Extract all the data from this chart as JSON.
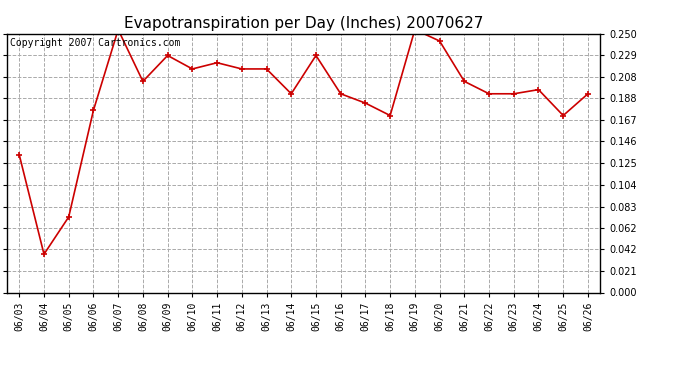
{
  "title": "Evapotranspiration per Day (Inches) 20070627",
  "copyright": "Copyright 2007 Cartronics.com",
  "dates": [
    "06/03",
    "06/04",
    "06/05",
    "06/06",
    "06/07",
    "06/08",
    "06/09",
    "06/10",
    "06/11",
    "06/12",
    "06/13",
    "06/14",
    "06/15",
    "06/16",
    "06/17",
    "06/18",
    "06/19",
    "06/20",
    "06/21",
    "06/22",
    "06/23",
    "06/24",
    "06/25",
    "06/26"
  ],
  "values": [
    0.133,
    0.037,
    0.073,
    0.176,
    0.254,
    0.204,
    0.229,
    0.216,
    0.222,
    0.216,
    0.216,
    0.192,
    0.229,
    0.192,
    0.183,
    0.171,
    0.254,
    0.243,
    0.204,
    0.192,
    0.192,
    0.196,
    0.171,
    0.192
  ],
  "line_color": "#cc0000",
  "marker": "+",
  "marker_size": 5,
  "marker_linewidth": 1.2,
  "line_width": 1.2,
  "background_color": "#ffffff",
  "plot_bg_color": "#ffffff",
  "grid_color": "#aaaaaa",
  "grid_linestyle": "--",
  "ylim": [
    0.0,
    0.25
  ],
  "yticks": [
    0.0,
    0.021,
    0.042,
    0.062,
    0.083,
    0.104,
    0.125,
    0.146,
    0.167,
    0.188,
    0.208,
    0.229,
    0.25
  ],
  "title_fontsize": 11,
  "copyright_fontsize": 7,
  "tick_fontsize": 7,
  "border_color": "#000000"
}
